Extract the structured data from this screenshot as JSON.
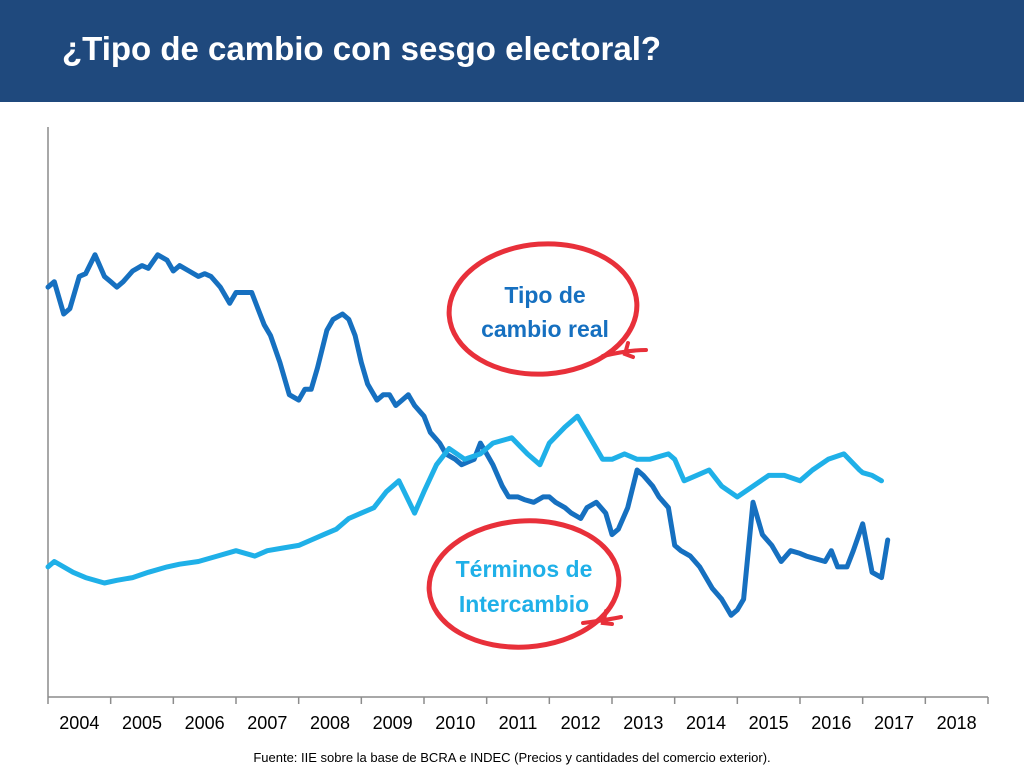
{
  "header": {
    "title": "¿Tipo de cambio con sesgo electoral?"
  },
  "colors": {
    "header_bg": "#1f497d",
    "tcr_line": "#1670c0",
    "tdi_line": "#1fb0e8",
    "circle": "#e8303a",
    "axis": "#8c8c8c"
  },
  "chart_data": {
    "type": "line",
    "title": "",
    "xlabel": "",
    "ylabel": "",
    "x_ticks": [
      "2004",
      "2005",
      "2006",
      "2007",
      "2008",
      "2009",
      "2010",
      "2011",
      "2012",
      "2013",
      "2014",
      "2015",
      "2016",
      "2017",
      "2018"
    ],
    "xlim": [
      2004.0,
      2019.0
    ],
    "ylim": [
      0,
      100
    ],
    "y_axis_labels": "none",
    "grid": false,
    "legend": "annotations",
    "series": [
      {
        "name": "Tipo de cambio real",
        "color": "#1670c0",
        "x": [
          2004.0,
          2004.1,
          2004.25,
          2004.35,
          2004.5,
          2004.6,
          2004.75,
          2004.9,
          2005.0,
          2005.1,
          2005.2,
          2005.35,
          2005.5,
          2005.6,
          2005.75,
          2005.9,
          2006.0,
          2006.1,
          2006.25,
          2006.4,
          2006.5,
          2006.6,
          2006.75,
          2006.9,
          2007.0,
          2007.1,
          2007.25,
          2007.35,
          2007.45,
          2007.55,
          2007.7,
          2007.85,
          2008.0,
          2008.1,
          2008.2,
          2008.3,
          2008.45,
          2008.55,
          2008.7,
          2008.8,
          2008.9,
          2009.0,
          2009.1,
          2009.25,
          2009.35,
          2009.45,
          2009.55,
          2009.65,
          2009.75,
          2009.85,
          2010.0,
          2010.1,
          2010.25,
          2010.35,
          2010.5,
          2010.6,
          2010.7,
          2010.8,
          2010.9,
          2011.0,
          2011.1,
          2011.25,
          2011.35,
          2011.5,
          2011.6,
          2011.75,
          2011.9,
          2012.0,
          2012.1,
          2012.25,
          2012.35,
          2012.5,
          2012.6,
          2012.75,
          2012.9,
          2013.0,
          2013.1,
          2013.25,
          2013.4,
          2013.5,
          2013.65,
          2013.75,
          2013.9,
          2014.0,
          2014.1,
          2014.25,
          2014.4,
          2014.5,
          2014.6,
          2014.75,
          2014.9,
          2015.0,
          2015.1,
          2015.25,
          2015.4,
          2015.55,
          2015.7,
          2015.85,
          2016.0,
          2016.1,
          2016.25,
          2016.4,
          2016.5,
          2016.6,
          2016.75,
          2016.85,
          2017.0,
          2017.15,
          2017.3,
          2017.4
        ],
        "values": [
          76,
          77,
          71,
          72,
          78,
          78.5,
          82,
          78,
          77,
          76,
          77,
          79,
          80,
          79.5,
          82,
          81,
          79,
          80,
          79,
          78,
          78.5,
          78,
          76,
          73,
          75,
          75,
          75,
          72,
          69,
          67,
          62,
          56,
          55,
          57,
          57,
          61,
          68,
          70,
          71,
          70,
          67,
          62,
          58,
          55,
          56,
          56,
          54,
          55,
          56,
          54,
          52,
          49,
          47,
          45,
          44,
          43,
          43.5,
          44,
          47,
          45,
          43,
          39,
          37,
          37,
          36.5,
          36,
          37,
          37,
          36,
          35,
          34,
          33,
          35,
          36,
          34,
          30,
          31,
          35,
          42,
          41,
          39,
          37,
          35,
          28,
          27,
          26,
          24,
          22,
          20,
          18,
          15,
          16,
          18,
          36,
          30,
          28,
          25,
          27,
          26.5,
          26,
          25.5,
          25,
          27,
          24,
          24,
          27,
          32,
          23,
          22,
          29
        ],
        "values_note": "relative level 0-100 (no y-axis labels printed)"
      },
      {
        "name": "Términos de Intercambio",
        "color": "#1fb0e8",
        "x": [
          2004.0,
          2004.1,
          2004.4,
          2004.6,
          2004.9,
          2005.1,
          2005.35,
          2005.6,
          2005.9,
          2006.1,
          2006.4,
          2006.7,
          2007.0,
          2007.3,
          2007.5,
          2007.75,
          2008.0,
          2008.2,
          2008.4,
          2008.6,
          2008.8,
          2009.0,
          2009.2,
          2009.4,
          2009.6,
          2009.85,
          2010.0,
          2010.2,
          2010.4,
          2010.65,
          2010.9,
          2011.1,
          2011.4,
          2011.65,
          2011.85,
          2012.0,
          2012.25,
          2012.45,
          2012.65,
          2012.85,
          2013.0,
          2013.2,
          2013.4,
          2013.6,
          2013.9,
          2014.0,
          2014.15,
          2014.35,
          2014.55,
          2014.75,
          2015.0,
          2015.25,
          2015.5,
          2015.75,
          2016.0,
          2016.2,
          2016.45,
          2016.7,
          2016.95,
          2017.0,
          2017.15,
          2017.3
        ],
        "values": [
          24,
          25,
          23,
          22,
          21,
          21.5,
          22,
          23,
          24,
          24.5,
          25,
          26,
          27,
          26,
          27,
          27.5,
          28,
          29,
          30,
          31,
          33,
          34,
          35,
          38,
          40,
          34,
          38,
          43,
          46,
          44,
          45,
          47,
          48,
          45,
          43,
          47,
          50,
          52,
          48,
          44,
          44,
          45,
          44,
          44,
          45,
          44,
          40,
          41,
          42,
          39,
          37,
          39,
          41,
          41,
          40,
          42,
          44,
          45,
          42,
          41.5,
          41,
          40
        ],
        "values_note": "relative level 0-100 (no y-axis labels printed)"
      }
    ],
    "annotations": [
      {
        "text_lines": [
          "Tipo de",
          "cambio real"
        ],
        "color": "#1670c0",
        "refers_to": "Tipo de cambio real"
      },
      {
        "text_lines": [
          "Términos de",
          "Intercambio"
        ],
        "color": "#1fb0e8",
        "refers_to": "Términos de Intercambio"
      }
    ]
  },
  "footer": {
    "source": "Fuente: IIE sobre la base de BCRA e INDEC (Precios y cantidades del comercio exterior)."
  }
}
